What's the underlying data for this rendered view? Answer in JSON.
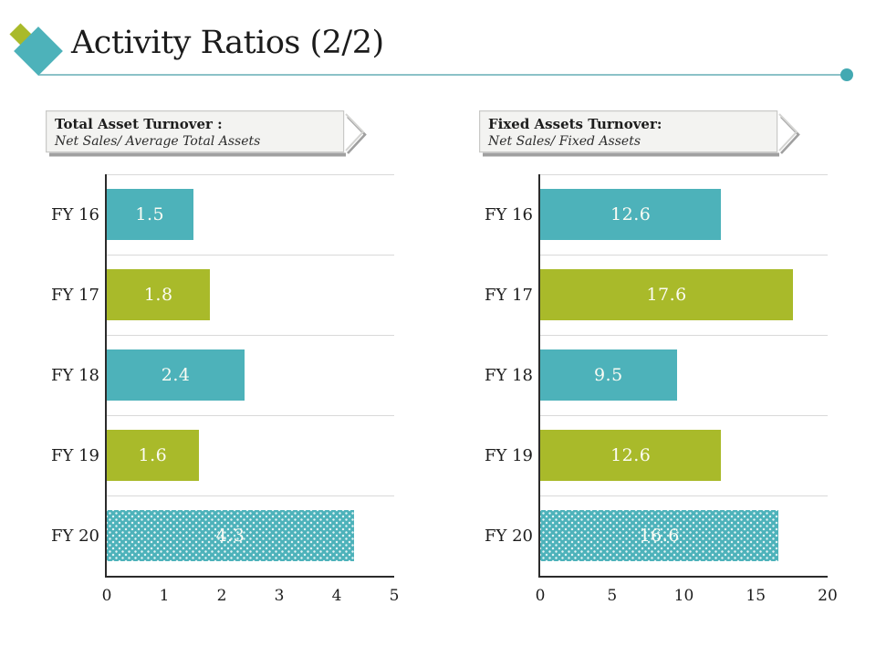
{
  "slide": {
    "title": "Activity Ratios (2/2)"
  },
  "colors": {
    "teal": "#4db2ba",
    "olive": "#a9ba2a",
    "title_text": "#1b1b1b",
    "rule_line": "#8cc2c8",
    "rule_dot": "#43a9b2",
    "axis": "#2b2b2b",
    "gridline": "#d9d9d9",
    "banner_fill": "#f3f3f1",
    "banner_border": "#c9c9c7",
    "banner_shadow": "#8f8f8f",
    "bar_value_text": "#fcfcf4",
    "label_text": "#1c1c1c"
  },
  "chart_data": [
    {
      "type": "bar",
      "orientation": "horizontal",
      "title": "Total Asset Turnover :",
      "subtitle": "Net Sales/ Average Total Assets",
      "categories": [
        "FY 16",
        "FY 17",
        "FY 18",
        "FY 19",
        "FY 20"
      ],
      "values": [
        1.5,
        1.8,
        2.4,
        1.6,
        4.3
      ],
      "bar_styles": [
        "teal",
        "olive",
        "teal",
        "olive",
        "teal-dotted"
      ],
      "xlim": [
        0,
        5
      ],
      "xticks": [
        0,
        1,
        2,
        3,
        4,
        5
      ],
      "grid": "horizontal-category-separators",
      "legend": "none"
    },
    {
      "type": "bar",
      "orientation": "horizontal",
      "title": "Fixed Assets Turnover:",
      "subtitle": "Net Sales/ Fixed Assets",
      "categories": [
        "FY 16",
        "FY 17",
        "FY 18",
        "FY 19",
        "FY 20"
      ],
      "values": [
        12.6,
        17.6,
        9.5,
        12.6,
        16.6
      ],
      "bar_styles": [
        "teal",
        "olive",
        "teal",
        "olive",
        "teal-dotted"
      ],
      "xlim": [
        0,
        20
      ],
      "xticks": [
        0,
        5,
        10,
        15,
        20
      ],
      "grid": "horizontal-category-separators",
      "legend": "none"
    }
  ]
}
